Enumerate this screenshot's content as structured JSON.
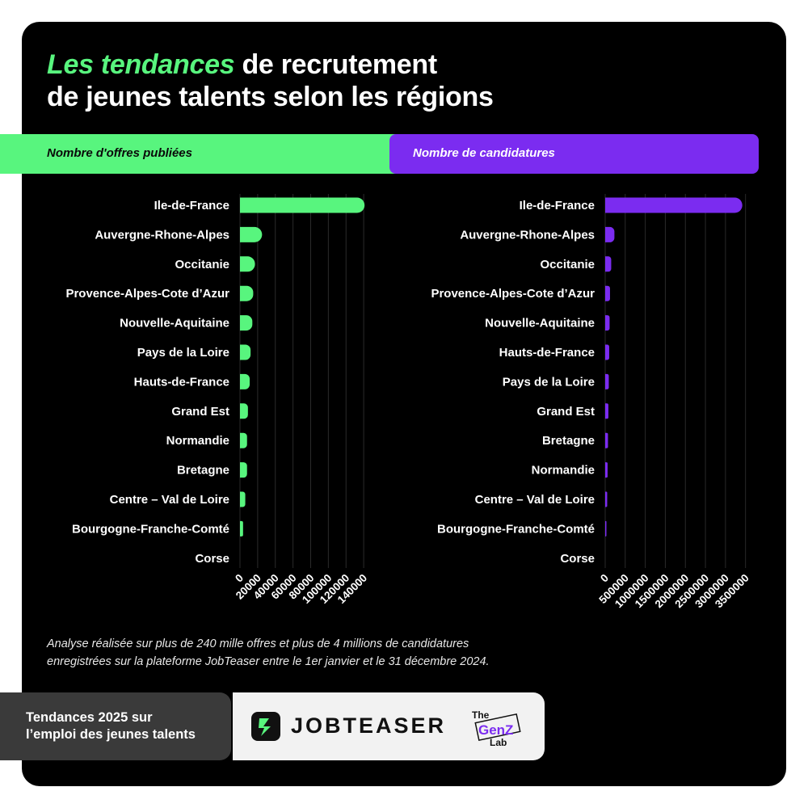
{
  "title": {
    "highlight": "Les tendances",
    "rest_line1": "de recrutement",
    "line2": "de jeunes talents selon les régions"
  },
  "band_labels": {
    "left": "Nombre d'offres publiées",
    "right": "Nombre de candidatures"
  },
  "colors": {
    "green": "#58f57e",
    "purple": "#7b2cf0",
    "background": "#000000"
  },
  "chart_data": [
    {
      "type": "bar",
      "orientation": "horizontal",
      "title": "Nombre d'offres publiées",
      "categories": [
        "Ile-de-France",
        "Auvergne-Rhone-Alpes",
        "Occitanie",
        "Provence-Alpes-Cote d’Azur",
        "Nouvelle-Aquitaine",
        "Pays de la Loire",
        "Hauts-de-France",
        "Grand Est",
        "Normandie",
        "Bretagne",
        "Centre – Val de Loire",
        "Bourgogne-Franche-Comté",
        "Corse"
      ],
      "values": [
        141000,
        25000,
        17000,
        15000,
        14000,
        12000,
        11000,
        9000,
        8000,
        8000,
        6000,
        3500,
        300
      ],
      "xlim": [
        0,
        160000
      ],
      "ticks": [
        0,
        20000,
        40000,
        60000,
        80000,
        100000,
        120000,
        140000
      ],
      "tick_labels": [
        "0",
        "20000",
        "40000",
        "60000",
        "80000",
        "100000",
        "120000",
        "140000"
      ],
      "grid": true,
      "color": "#58f57e"
    },
    {
      "type": "bar",
      "orientation": "horizontal",
      "title": "Nombre de candidatures",
      "categories": [
        "Ile-de-France",
        "Auvergne-Rhone-Alpes",
        "Occitanie",
        "Provence-Alpes-Cote d’Azur",
        "Nouvelle-Aquitaine",
        "Hauts-de-France",
        "Pays de la Loire",
        "Grand Est",
        "Bretagne",
        "Normandie",
        "Centre – Val de Loire",
        "Bourgogne-Franche-Comté",
        "Corse"
      ],
      "values": [
        3420000,
        230000,
        150000,
        120000,
        110000,
        100000,
        90000,
        80000,
        70000,
        60000,
        50000,
        30000,
        5000
      ],
      "xlim": [
        0,
        3950000
      ],
      "ticks": [
        0,
        500000,
        1000000,
        1500000,
        2000000,
        2500000,
        3000000,
        3500000
      ],
      "tick_labels": [
        "0",
        "500000",
        "1000000",
        "1500000",
        "2000000",
        "2500000",
        "3000000",
        "3500000"
      ],
      "grid": true,
      "color": "#7b2cf0"
    }
  ],
  "footnote": {
    "line1": "Analyse réalisée sur plus de 240 mille offres et plus de 4 millions de candidatures",
    "line2": "enregistrées sur la plateforme JobTeaser entre le 1er janvier et le 31 décembre 2024."
  },
  "footer": {
    "text_line1": "Tendances 2025 sur",
    "text_line2": "l’emploi des jeunes talents",
    "brand": "JOBTEASER",
    "partner_top": "The",
    "partner_mid": "GenZ",
    "partner_bottom": "Lab"
  }
}
